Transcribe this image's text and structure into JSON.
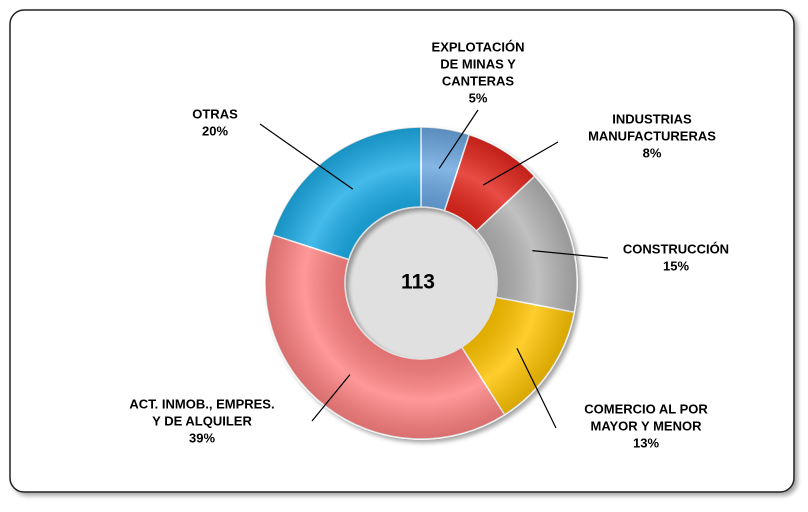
{
  "chart_data": {
    "type": "donut",
    "center_label": 113,
    "categories": [
      [
        "EXPLOTACIÓN",
        "DE MINAS Y",
        "CANTERAS"
      ],
      [
        "INDUSTRIAS",
        "MANUFACTURERAS"
      ],
      [
        "CONSTRUCCIÓN"
      ],
      [
        "COMERCIO AL POR",
        "MAYOR Y MENOR"
      ],
      [
        "ACT. INMOB., EMPRES.",
        "Y DE ALQUILER"
      ],
      [
        "OTRAS"
      ]
    ],
    "values": [
      5,
      8,
      15,
      13,
      39,
      20
    ],
    "value_labels": [
      "5%",
      "8%",
      "15%",
      "13%",
      "39%",
      "20%"
    ],
    "colors": [
      "#6aa6e0",
      "#e3281f",
      "#b3b3b3",
      "#ffc400",
      "#ff8282",
      "#1cace6"
    ]
  }
}
